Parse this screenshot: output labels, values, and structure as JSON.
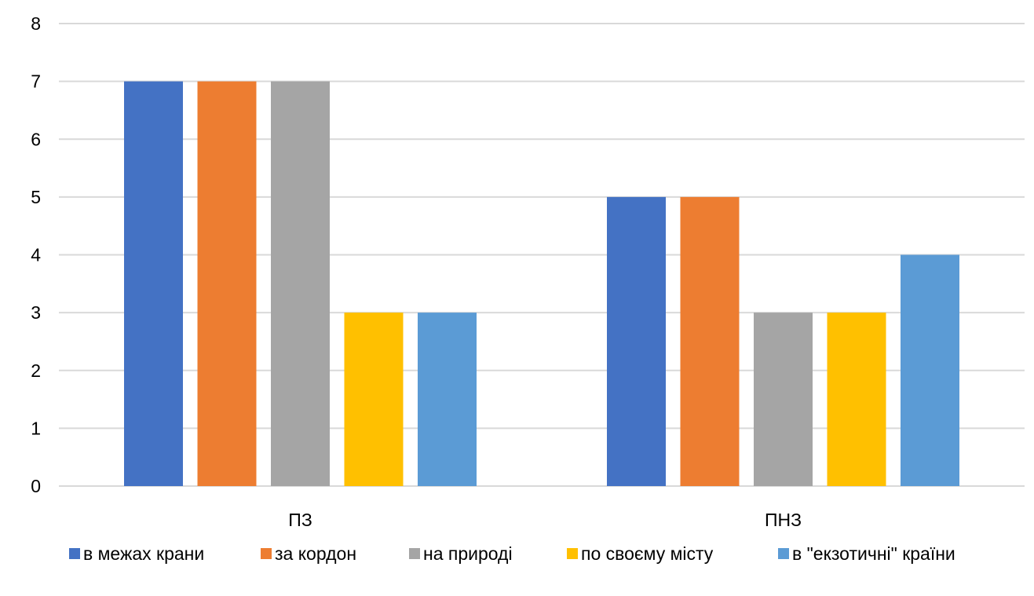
{
  "chart_data": {
    "type": "bar",
    "categories": [
      "ПЗ",
      "ПНЗ"
    ],
    "series": [
      {
        "name": "в межах крани",
        "values": [
          7,
          5
        ],
        "color": "#4472c4"
      },
      {
        "name": "за кордон",
        "values": [
          7,
          5
        ],
        "color": "#ed7d31"
      },
      {
        "name": "на природі",
        "values": [
          7,
          3
        ],
        "color": "#a5a5a5"
      },
      {
        "name": "по своєму місту",
        "values": [
          3,
          3
        ],
        "color": "#ffc000"
      },
      {
        "name": "в \"екзотичні\" країни",
        "values": [
          3,
          4
        ],
        "color": "#5b9bd5"
      }
    ],
    "ylim": [
      0,
      8
    ],
    "yticks": [
      "0",
      "1",
      "2",
      "3",
      "4",
      "5",
      "6",
      "7",
      "8"
    ],
    "grid": true,
    "legend": "bottom"
  }
}
